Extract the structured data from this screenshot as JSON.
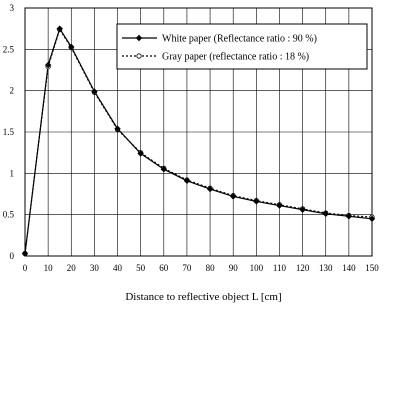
{
  "chart_data": {
    "type": "line",
    "title": "",
    "xlabel": "Distance to reflective object L [cm]",
    "ylabel": "",
    "xlim": [
      0,
      150
    ],
    "ylim": [
      0,
      3
    ],
    "x_ticks": [
      0,
      10,
      20,
      30,
      40,
      50,
      60,
      70,
      80,
      90,
      100,
      110,
      120,
      130,
      140,
      150
    ],
    "y_ticks": [
      0,
      0.5,
      1,
      1.5,
      2,
      2.5,
      3
    ],
    "y_tick_labels": [
      "0",
      "0.5",
      "1",
      "1.5",
      "2",
      "2.5",
      "3"
    ],
    "grid": true,
    "legend_position": "top-right",
    "x": [
      0,
      10,
      15,
      20,
      30,
      40,
      50,
      60,
      70,
      80,
      90,
      100,
      110,
      120,
      130,
      140,
      150
    ],
    "series": [
      {
        "name": "White paper (Reflectance ratio : 90 %)",
        "style": "solid",
        "marker": "filled-diamond",
        "color": "#000000",
        "values": [
          0.03,
          2.31,
          2.75,
          2.53,
          1.99,
          1.54,
          1.24,
          1.05,
          0.91,
          0.81,
          0.72,
          0.66,
          0.61,
          0.56,
          0.51,
          0.48,
          0.45
        ]
      },
      {
        "name": "Gray paper (reflectance ratio : 18 %)",
        "style": "dotted",
        "marker": "open-circle",
        "color": "#000000",
        "values": [
          0.03,
          2.29,
          2.74,
          2.52,
          1.98,
          1.53,
          1.25,
          1.06,
          0.92,
          0.82,
          0.73,
          0.67,
          0.62,
          0.57,
          0.52,
          0.49,
          0.47
        ]
      }
    ]
  }
}
